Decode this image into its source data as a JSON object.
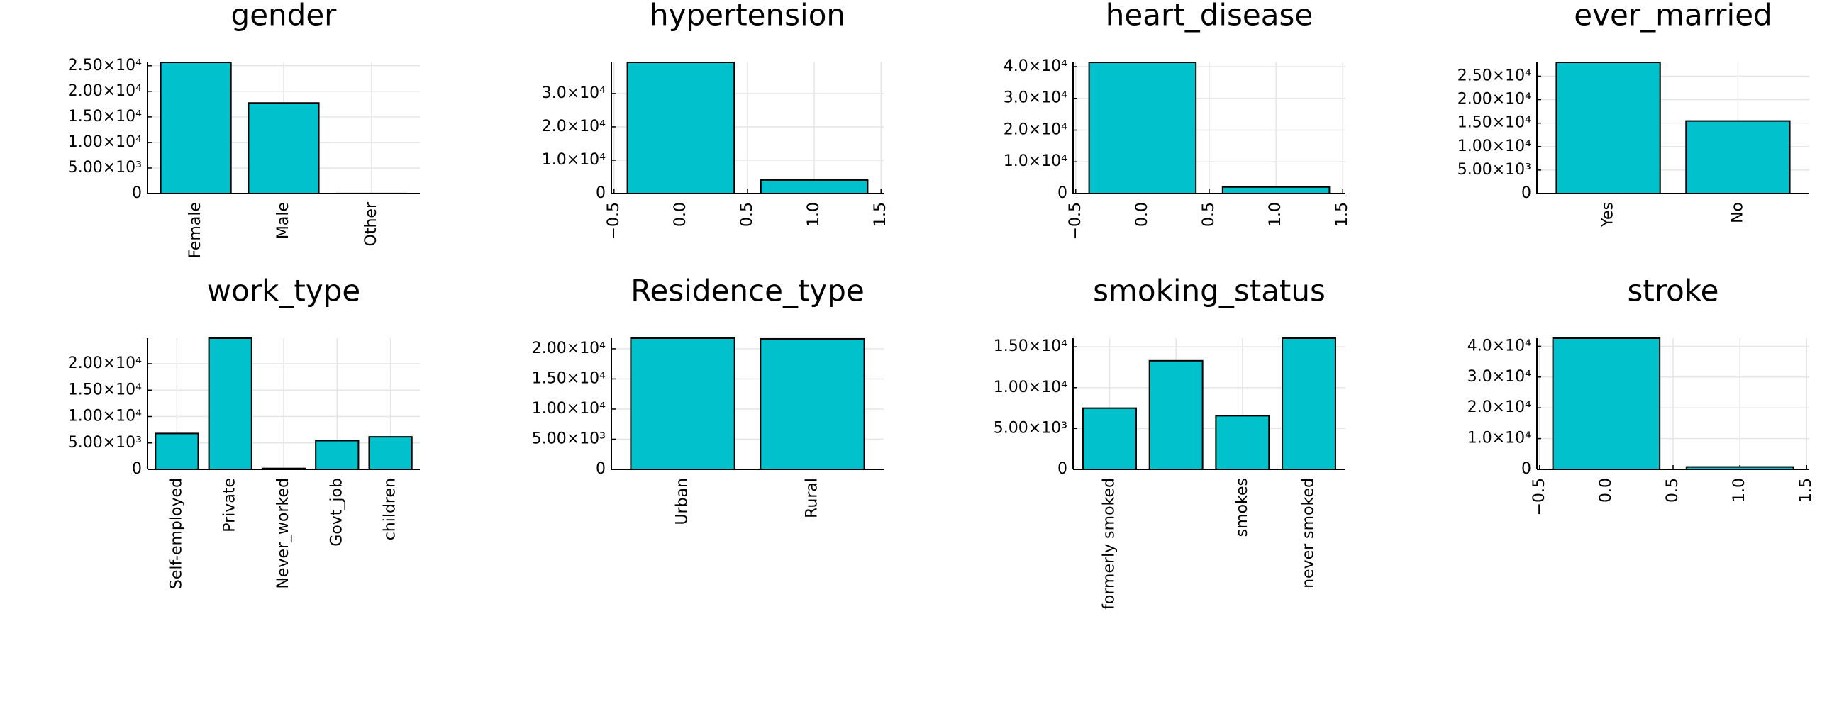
{
  "chart_data": [
    {
      "type": "bar",
      "title": "gender",
      "categories": [
        "Female",
        "Male",
        "Other"
      ],
      "values": [
        25665,
        17724,
        11
      ],
      "color": "#00c1cc",
      "ylim": [
        0,
        25665
      ],
      "yticks": [
        0,
        {
          "value": 5000,
          "label": "5.00×10³"
        },
        {
          "value": 10000,
          "label": "1.00×10⁴"
        },
        {
          "value": 15000,
          "label": "1.50×10⁴"
        },
        {
          "value": 20000,
          "label": "2.00×10⁴"
        },
        {
          "value": 25000,
          "label": "2.50×10⁴"
        }
      ],
      "grid": true
    },
    {
      "type": "bar",
      "title": "hypertension",
      "x": [
        0,
        1
      ],
      "values": [
        39339,
        4061
      ],
      "color": "#00c1cc",
      "xlim": [
        -0.52,
        1.52
      ],
      "xticks": [
        {
          "value": -0.5,
          "label": "−0.5"
        },
        {
          "value": 0,
          "label": "0.0"
        },
        0.5,
        {
          "value": 1,
          "label": "1.0"
        },
        1.5
      ],
      "ylim": [
        0,
        39339
      ],
      "yticks": [
        0,
        {
          "value": 10000,
          "label": "1.0×10⁴"
        },
        {
          "value": 20000,
          "label": "2.0×10⁴"
        },
        {
          "value": 30000,
          "label": "3.0×10⁴"
        }
      ],
      "grid": true
    },
    {
      "type": "bar",
      "title": "heart_disease",
      "x": [
        0,
        1
      ],
      "values": [
        41338,
        2062
      ],
      "color": "#00c1cc",
      "xlim": [
        -0.52,
        1.52
      ],
      "xticks": [
        {
          "value": -0.5,
          "label": "−0.5"
        },
        {
          "value": 0,
          "label": "0.0"
        },
        0.5,
        {
          "value": 1,
          "label": "1.0"
        },
        1.5
      ],
      "ylim": [
        0,
        41338
      ],
      "yticks": [
        0,
        {
          "value": 10000,
          "label": "1.0×10⁴"
        },
        {
          "value": 20000,
          "label": "2.0×10⁴"
        },
        {
          "value": 30000,
          "label": "3.0×10⁴"
        },
        {
          "value": 40000,
          "label": "4.0×10⁴"
        }
      ],
      "grid": true
    },
    {
      "type": "bar",
      "title": "ever_married",
      "categories": [
        "Yes",
        "No"
      ],
      "values": [
        27938,
        15462
      ],
      "color": "#00c1cc",
      "ylim": [
        0,
        27938
      ],
      "yticks": [
        0,
        {
          "value": 5000,
          "label": "5.00×10³"
        },
        {
          "value": 10000,
          "label": "1.00×10⁴"
        },
        {
          "value": 15000,
          "label": "1.50×10⁴"
        },
        {
          "value": 20000,
          "label": "2.00×10⁴"
        },
        {
          "value": 25000,
          "label": "2.50×10⁴"
        }
      ],
      "grid": true
    },
    {
      "type": "bar",
      "title": "work_type",
      "categories": [
        "Self-employed",
        "Private",
        "Never_worked",
        "Govt_job",
        "children"
      ],
      "values": [
        6793,
        24834,
        177,
        5440,
        6156
      ],
      "color": "#00c1cc",
      "ylim": [
        0,
        24834
      ],
      "yticks": [
        0,
        {
          "value": 5000,
          "label": "5.00×10³"
        },
        {
          "value": 10000,
          "label": "1.00×10⁴"
        },
        {
          "value": 15000,
          "label": "1.50×10⁴"
        },
        {
          "value": 20000,
          "label": "2.00×10⁴"
        }
      ],
      "grid": true
    },
    {
      "type": "bar",
      "title": "Residence_type",
      "categories": [
        "Urban",
        "Rural"
      ],
      "values": [
        21756,
        21644
      ],
      "color": "#00c1cc",
      "ylim": [
        0,
        21756
      ],
      "yticks": [
        0,
        {
          "value": 5000,
          "label": "5.00×10³"
        },
        {
          "value": 10000,
          "label": "1.00×10⁴"
        },
        {
          "value": 15000,
          "label": "1.50×10⁴"
        },
        {
          "value": 20000,
          "label": "2.00×10⁴"
        }
      ],
      "grid": true
    },
    {
      "type": "bar",
      "title": "smoking_status",
      "categories": [
        "formerly smoked",
        null,
        "smokes",
        "never smoked"
      ],
      "values": [
        7493,
        13292,
        6562,
        16053
      ],
      "color": "#00c1cc",
      "ylim": [
        0,
        16053
      ],
      "yticks": [
        0,
        {
          "value": 5000,
          "label": "5.00×10³"
        },
        {
          "value": 10000,
          "label": "1.00×10⁴"
        },
        {
          "value": 15000,
          "label": "1.50×10⁴"
        }
      ],
      "grid": true
    },
    {
      "type": "bar",
      "title": "stroke",
      "x": [
        0,
        1
      ],
      "values": [
        42617,
        783
      ],
      "color": "#00c1cc",
      "xlim": [
        -0.52,
        1.52
      ],
      "xticks": [
        {
          "value": -0.5,
          "label": "−0.5"
        },
        {
          "value": 0,
          "label": "0.0"
        },
        0.5,
        {
          "value": 1,
          "label": "1.0"
        },
        1.5
      ],
      "ylim": [
        0,
        42617
      ],
      "yticks": [
        0,
        {
          "value": 10000,
          "label": "1.0×10⁴"
        },
        {
          "value": 20000,
          "label": "2.0×10⁴"
        },
        {
          "value": 30000,
          "label": "3.0×10⁴"
        },
        {
          "value": 40000,
          "label": "4.0×10⁴"
        }
      ],
      "grid": true
    }
  ]
}
